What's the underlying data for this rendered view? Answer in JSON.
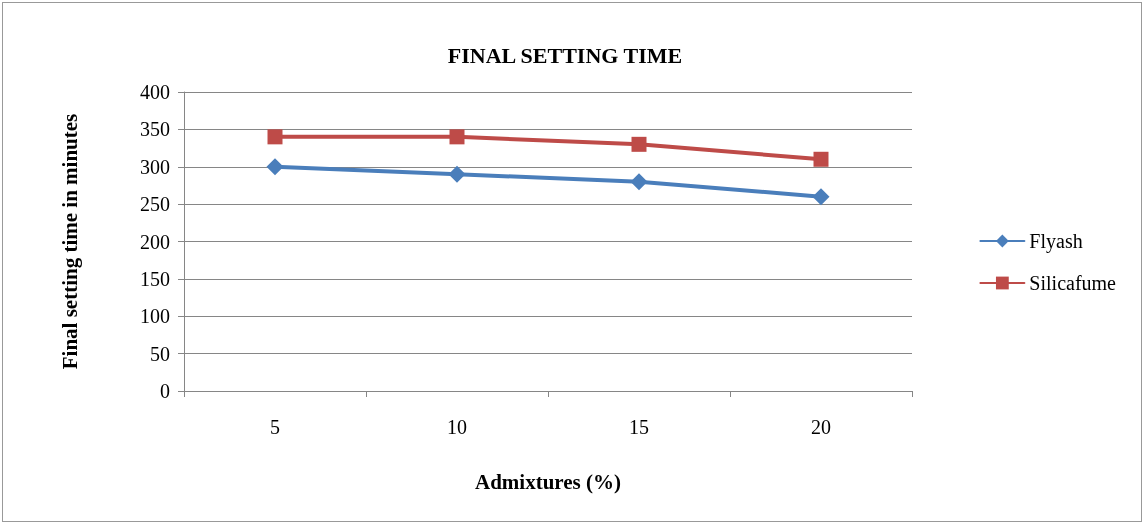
{
  "chart_data": {
    "type": "line",
    "title": "FINAL SETTING TIME",
    "xlabel": "Admixtures (%)",
    "ylabel": "Final setting time in minutes",
    "categories": [
      "5",
      "10",
      "15",
      "20"
    ],
    "series": [
      {
        "name": "Flyash",
        "color": "#4a7ebb",
        "marker": "diamond",
        "values": [
          300,
          290,
          280,
          260
        ]
      },
      {
        "name": "Silicafume",
        "color": "#be4b48",
        "marker": "square",
        "values": [
          340,
          340,
          330,
          310
        ]
      }
    ],
    "ylim": [
      0,
      400
    ],
    "yticks": [
      0,
      50,
      100,
      150,
      200,
      250,
      300,
      350,
      400
    ],
    "grid": "y",
    "legend": "right",
    "line_style": "solid"
  }
}
